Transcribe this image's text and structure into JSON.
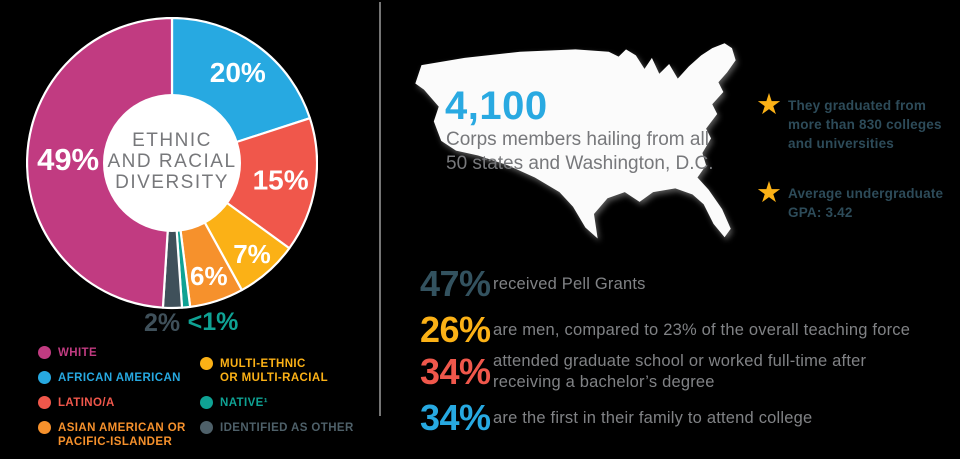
{
  "background": "#000000",
  "text_color": "#808285",
  "chart_data": {
    "type": "pie",
    "variant": "donut",
    "title": "ETHNIC AND RACIAL DIVERSITY",
    "center_lines": [
      "ETHNIC",
      "AND RACIAL",
      "DIVERSITY"
    ],
    "outer_radius": 145,
    "inner_radius": 69,
    "start_angle_deg": 0,
    "direction": "clockwise",
    "categories": [
      "AFRICAN AMERICAN",
      "LATINO/A",
      "MULTI-ETHNIC OR MULTI-RACIAL",
      "ASIAN AMERICAN OR PACIFIC-ISLANDER",
      "NATIVE",
      "IDENTIFIED AS OTHER",
      "WHITE"
    ],
    "values": [
      20,
      15,
      7,
      6,
      0.9,
      2.1,
      49
    ],
    "segments": [
      {
        "label": "AFRICAN AMERICAN",
        "display": "20%",
        "value": 20,
        "color": "#27A9E1",
        "label_r": 112,
        "label_size": 28
      },
      {
        "label": "LATINO/A",
        "display": "15%",
        "value": 15,
        "color": "#F0574B",
        "label_r": 110,
        "label_size": 28
      },
      {
        "label": "MULTI-ETHNIC OR MULTI-RACIAL",
        "display": "7%",
        "value": 7,
        "color": "#FBB116",
        "label_r": 121,
        "label_size": 26
      },
      {
        "label": "ASIAN AMERICAN OR PACIFIC-ISLANDER",
        "display": "6%",
        "value": 6,
        "color": "#F6912C",
        "label_r": 119,
        "label_size": 26
      },
      {
        "label": "NATIVE",
        "display": "<1%",
        "value": 0.9,
        "color": "#0FA294",
        "outside": true,
        "label_pos": [
          41,
          159
        ],
        "label_size": 25
      },
      {
        "label": "IDENTIFIED AS OTHER",
        "display": "2%",
        "value": 2.1,
        "color": "#3F505A",
        "outside": true,
        "label_pos": [
          -10,
          160
        ],
        "label_size": 25
      },
      {
        "label": "WHITE",
        "display": "49%",
        "value": 49,
        "color": "#C13B81",
        "label_r": 104,
        "label_size": 31
      }
    ]
  },
  "legend": {
    "col1": [
      {
        "lines": [
          "WHITE"
        ],
        "color": "#C13B81"
      },
      {
        "lines": [
          "AFRICAN AMERICAN"
        ],
        "color": "#27A9E1"
      },
      {
        "lines": [
          "LATINO/A"
        ],
        "color": "#F0574B"
      },
      {
        "lines": [
          "ASIAN AMERICAN OR",
          "PACIFIC-ISLANDER"
        ],
        "color": "#F6912C"
      }
    ],
    "col2": [
      {
        "lines": [
          "MULTI-ETHNIC",
          "OR MULTI-RACIAL"
        ],
        "color": "#FBB116"
      },
      {
        "lines": [
          "NATIVE¹"
        ],
        "color": "#0FA294"
      },
      {
        "lines": [
          "IDENTIFIED AS OTHER"
        ],
        "color": "#4E6069"
      }
    ]
  },
  "map": {
    "stat_number": "4,100",
    "number_color": "#29A9E1",
    "caption_lines": [
      "Corps members hailing from all",
      "50 states and Washington, D.C."
    ]
  },
  "star_color": "#FBB116",
  "star_text_color": "#2D4B59",
  "stars": [
    {
      "lines": [
        "They graduated from",
        "more than 830 colleges",
        "and universities"
      ]
    },
    {
      "lines": [
        "Average undergraduate",
        "GPA: 3.42"
      ]
    }
  ],
  "stats": [
    {
      "value": "47%",
      "color": "#33525F",
      "lines": [
        "received Pell Grants"
      ]
    },
    {
      "value": "26%",
      "color": "#FBB116",
      "lines": [
        "are men, compared to 23% of the overall teaching force"
      ]
    },
    {
      "value": "34%",
      "color": "#F0574B",
      "lines": [
        "attended graduate school or worked full-time after",
        "receiving a bachelor’s degree"
      ]
    },
    {
      "value": "34%",
      "color": "#27A9E1",
      "lines": [
        "are the first in their family to attend college"
      ]
    }
  ]
}
